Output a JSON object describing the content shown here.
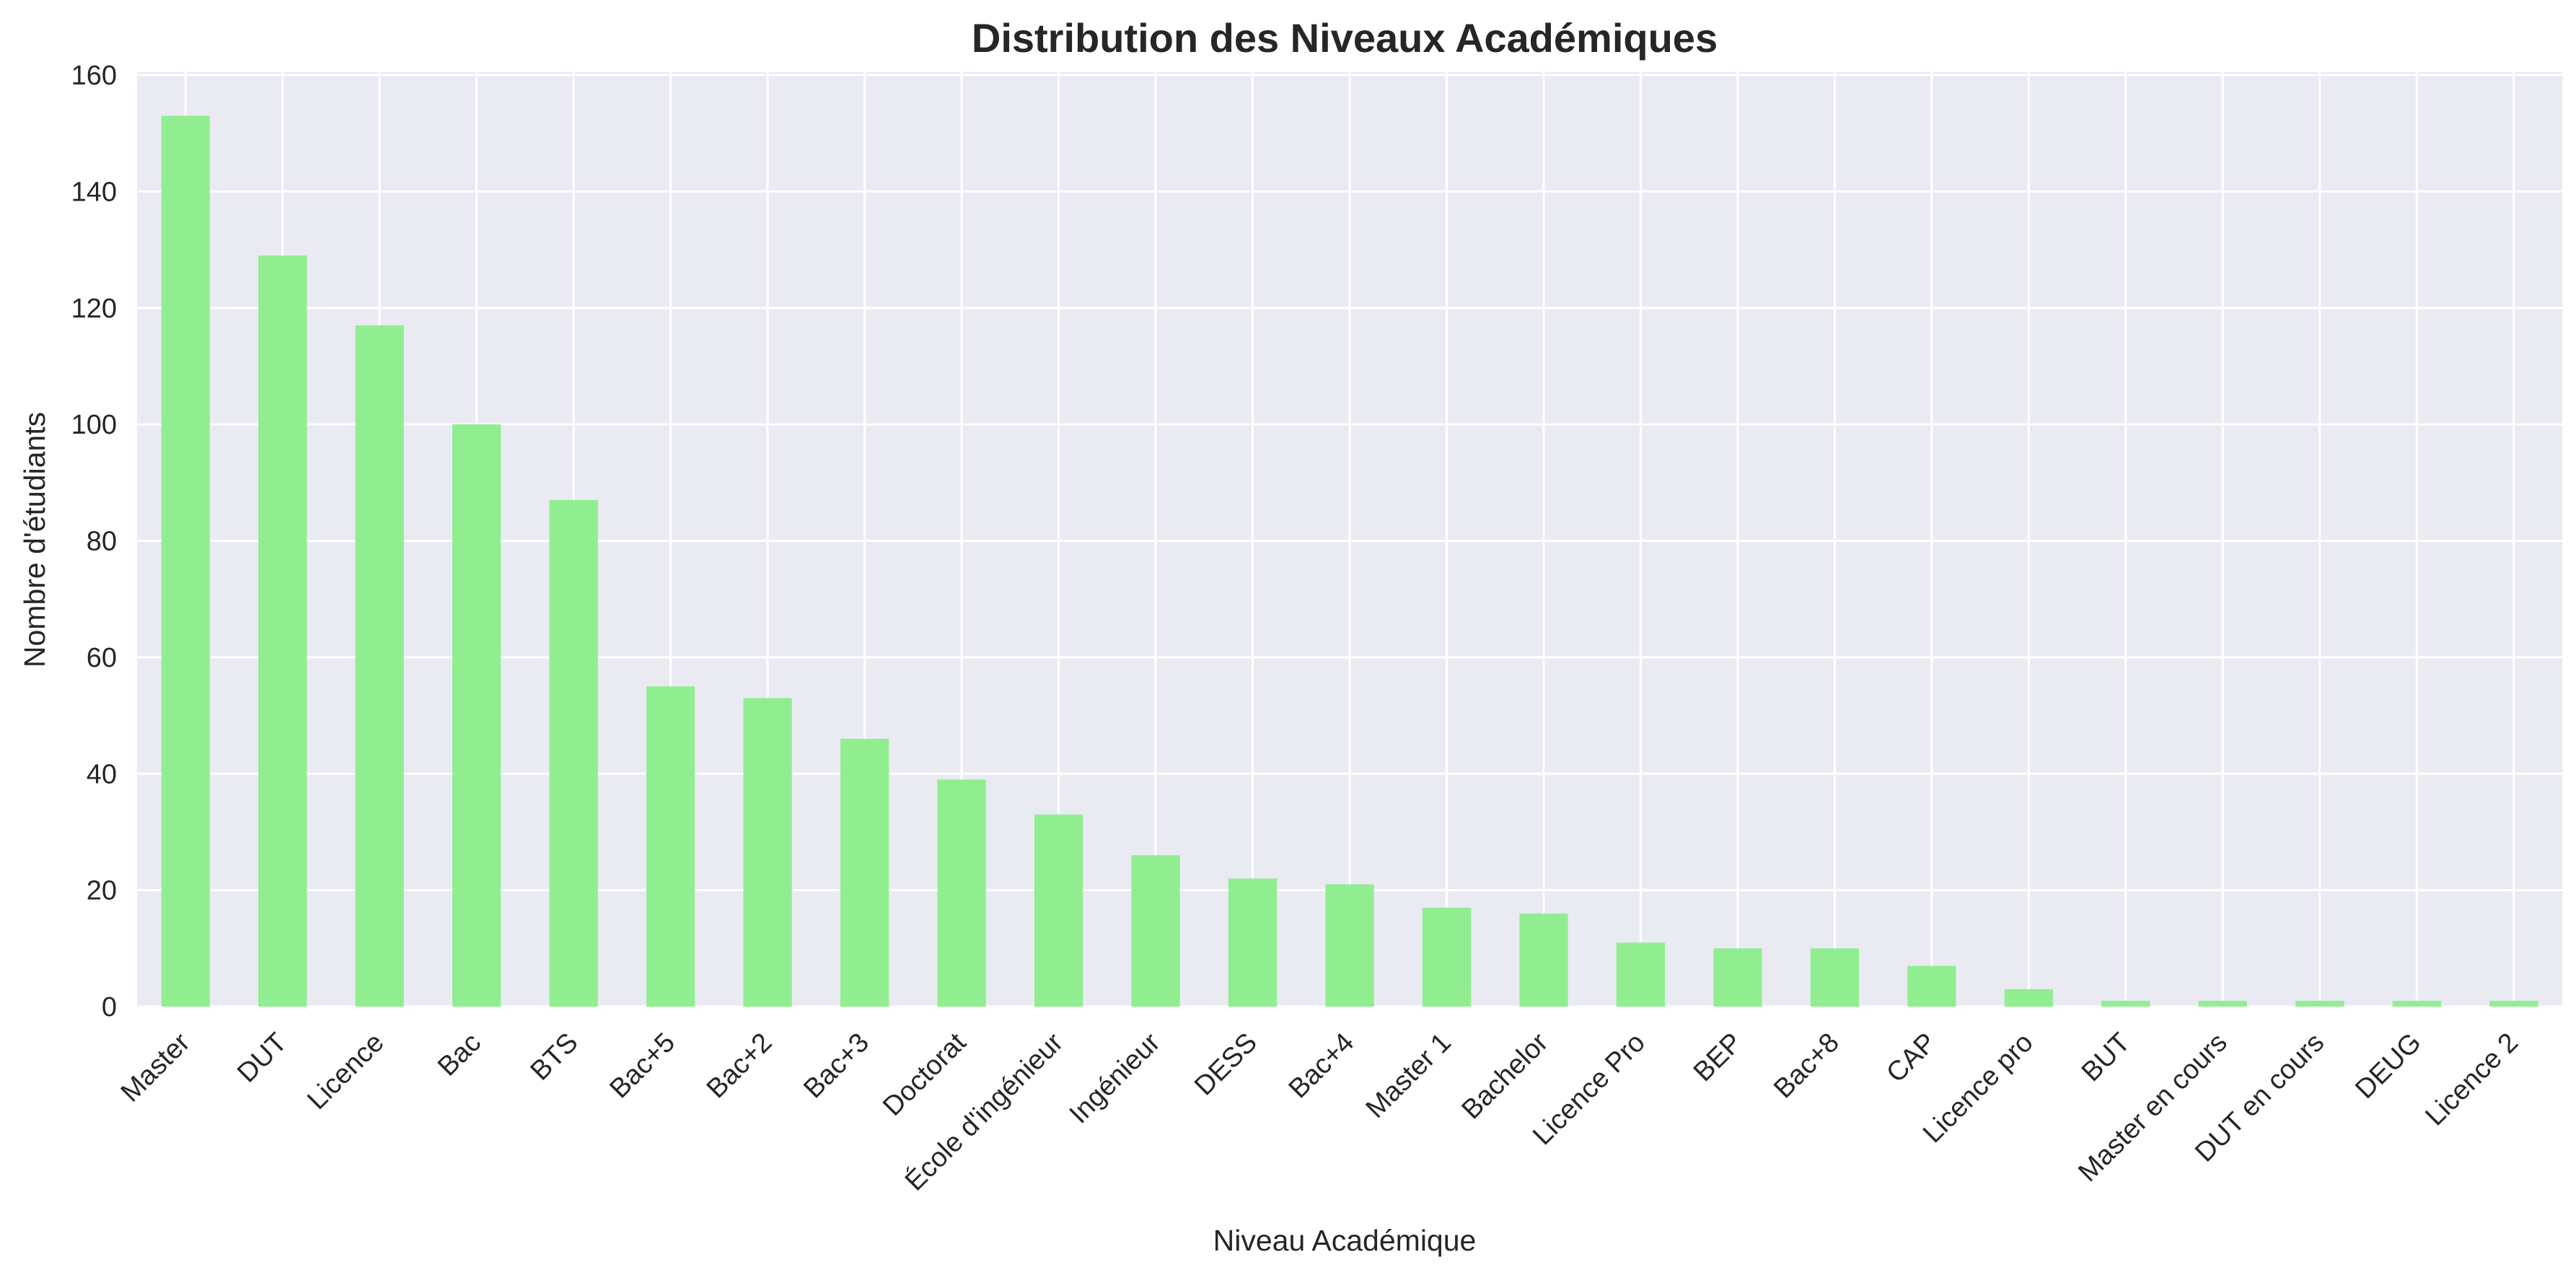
{
  "chart_data": {
    "type": "bar",
    "title": "Distribution des Niveaux Académiques",
    "xlabel": "Niveau Académique",
    "ylabel": "Nombre d'étudiants",
    "categories": [
      "Master",
      "DUT",
      "Licence",
      "Bac",
      "BTS",
      "Bac+5",
      "Bac+2",
      "Bac+3",
      "Doctorat",
      "École d'ingénieur",
      "Ingénieur",
      "DESS",
      "Bac+4",
      "Master 1",
      "Bachelor",
      "Licence Pro",
      "BEP",
      "Bac+8",
      "CAP",
      "Licence pro",
      "BUT",
      "Master en cours",
      "DUT en cours",
      "DEUG",
      "Licence 2"
    ],
    "values": [
      153,
      129,
      117,
      100,
      87,
      55,
      53,
      46,
      39,
      33,
      26,
      22,
      21,
      17,
      16,
      11,
      10,
      10,
      7,
      3,
      1,
      1,
      1,
      1,
      1
    ],
    "ylim": [
      0,
      160
    ],
    "yticks": [
      0,
      20,
      40,
      60,
      80,
      100,
      120,
      140,
      160
    ],
    "grid": true,
    "legend": "none",
    "colors": {
      "bar": "#90ee90",
      "plot_background": "#eaeaf2",
      "grid": "#ffffff",
      "text": "#262626"
    }
  }
}
